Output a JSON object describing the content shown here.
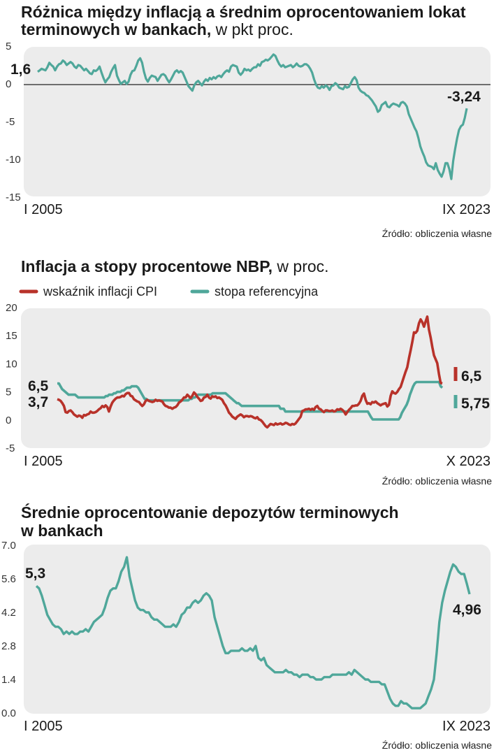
{
  "colors": {
    "teal": "#4fa79a",
    "red": "#b8322a",
    "panel": "#ececec",
    "text": "#1a1a1a"
  },
  "chart_data": [
    {
      "type": "line",
      "title": "Różnica między inflacją a średnim oprocentowaniem lokat",
      "title_line2": "terminowych w bankach,",
      "title_unit": " w pkt proc.",
      "x_start_label": "I 2005",
      "x_end_label": "IX 2023",
      "yticks": [
        "5",
        "0",
        "-5",
        "-10",
        "-15"
      ],
      "ytick_values": [
        5,
        0,
        -5,
        -10,
        -15
      ],
      "ylim": [
        -15,
        5
      ],
      "zero_line": true,
      "source": "Źródło: obliczenia własne",
      "start_annotation": "1,6",
      "end_annotation": "-3,24",
      "series": [
        {
          "name": "różnica",
          "color": "#4fa79a",
          "values": [
            1.6,
            1.8,
            2.0,
            1.9,
            1.8,
            2.2,
            2.8,
            2.5,
            2.3,
            1.8,
            2.3,
            2.6,
            2.7,
            3.1,
            2.9,
            2.5,
            2.7,
            2.9,
            2.7,
            2.3,
            2.1,
            2.5,
            2.4,
            2.1,
            1.8,
            2.0,
            1.7,
            1.4,
            1.3,
            1.8,
            1.7,
            1.9,
            2.3,
            1.5,
            0.8,
            0.2,
            0.6,
            0.9,
            1.6,
            2.1,
            2.5,
            1.1,
            0.5,
            0.0,
            0.2,
            0.4,
            0.0,
            0.3,
            1.2,
            1.7,
            1.8,
            2.4,
            3.1,
            3.4,
            2.8,
            1.6,
            0.7,
            0.3,
            0.8,
            1.1,
            1.0,
            0.9,
            0.4,
            0.8,
            1.2,
            1.3,
            1.1,
            0.6,
            0.2,
            0.6,
            1.1,
            1.6,
            1.8,
            1.5,
            1.7,
            1.5,
            0.9,
            0.3,
            -0.3,
            -0.6,
            -0.9,
            -0.2,
            0.2,
            0.4,
            0.1,
            -0.2,
            0.3,
            0.6,
            0.4,
            0.8,
            0.6,
            0.9,
            0.7,
            1.0,
            1.1,
            0.9,
            1.3,
            1.6,
            1.8,
            1.6,
            2.3,
            2.5,
            2.4,
            2.3,
            1.5,
            1.2,
            1.5,
            2.0,
            1.8,
            1.9,
            1.7,
            2.0,
            2.2,
            2.2,
            2.6,
            2.4,
            2.9,
            3.0,
            3.2,
            3.1,
            3.3,
            3.6,
            3.9,
            3.7,
            3.1,
            2.6,
            2.3,
            2.5,
            2.2,
            2.3,
            2.4,
            2.5,
            2.2,
            2.4,
            2.7,
            2.4,
            2.3,
            2.4,
            2.6,
            2.6,
            2.4,
            2.0,
            1.5,
            0.6,
            -0.1,
            -0.5,
            -0.6,
            -0.3,
            -0.5,
            -0.2,
            -0.4,
            -0.8,
            -0.3,
            -0.2,
            0.1,
            -0.1,
            -0.5,
            -0.6,
            -0.7,
            -0.3,
            -0.5,
            -0.4,
            0.1,
            0.6,
            0.9,
            0.5,
            -0.5,
            -0.9,
            -1.1,
            -1.2,
            -1.5,
            -1.6,
            -1.9,
            -2.2,
            -2.6,
            -3.0,
            -3.7,
            -3.5,
            -2.8,
            -2.6,
            -2.4,
            -3.0,
            -3.1,
            -2.8,
            -2.6,
            -2.7,
            -2.8,
            -3.0,
            -2.5,
            -2.4,
            -2.6,
            -3.0,
            -4.0,
            -4.6,
            -5.2,
            -5.8,
            -6.3,
            -7.2,
            -8.3,
            -9.0,
            -9.6,
            -10.4,
            -10.8,
            -10.9,
            -11.0,
            -11.3,
            -10.5,
            -11.4,
            -11.9,
            -12.3,
            -11.6,
            -10.5,
            -10.5,
            -11.3,
            -12.6,
            -10.2,
            -8.6,
            -7.2,
            -6.1,
            -5.6,
            -5.4,
            -4.5,
            -3.24
          ]
        }
      ]
    },
    {
      "type": "line",
      "title": "Inflacja a stopy procentowe NBP,",
      "title_unit": " w proc.",
      "x_start_label": "I 2005",
      "x_end_label": "X 2023",
      "yticks": [
        "20",
        "15",
        "10",
        "5",
        "0",
        "-5"
      ],
      "ytick_values": [
        20,
        15,
        10,
        5,
        0,
        -5
      ],
      "ylim": [
        -5,
        20
      ],
      "source": "Źródło: obliczenia własne",
      "start_annotations": [
        "6,5",
        "3,7"
      ],
      "end_annotations": [
        "6,5",
        "5,75"
      ],
      "series": [
        {
          "name": "wskaźnik inflacji CPI",
          "color": "#b8322a",
          "values": [
            3.7,
            3.6,
            3.4,
            3.0,
            2.5,
            1.4,
            1.3,
            1.6,
            1.7,
            1.4,
            1.0,
            0.8,
            0.6,
            0.8,
            0.7,
            0.4,
            0.9,
            0.8,
            1.0,
            1.1,
            1.5,
            1.3,
            1.3,
            1.4,
            1.6,
            1.9,
            2.1,
            2.5,
            2.3,
            2.6,
            2.3,
            1.5,
            2.4,
            3.1,
            3.5,
            3.8,
            4.0,
            4.0,
            4.1,
            4.3,
            4.2,
            4.6,
            4.8,
            4.8,
            4.3,
            4.2,
            3.7,
            3.5,
            3.3,
            3.2,
            2.8,
            2.5,
            2.8,
            3.4,
            3.6,
            3.4,
            3.3,
            3.2,
            3.3,
            3.6,
            3.4,
            3.5,
            3.4,
            3.3,
            2.8,
            2.5,
            2.4,
            2.2,
            2.2,
            2.0,
            2.2,
            2.3,
            2.6,
            3.1,
            3.3,
            3.6,
            4.0,
            4.0,
            4.5,
            4.2,
            3.9,
            4.3,
            4.9,
            4.6,
            4.1,
            3.8,
            3.4,
            3.5,
            4.0,
            4.1,
            4.5,
            4.0,
            3.8,
            4.2,
            4.1,
            4.2,
            3.9,
            4.0,
            3.8,
            3.6,
            3.0,
            2.6,
            2.0,
            1.3,
            1.0,
            0.6,
            0.4,
            0.2,
            0.6,
            0.8,
            1.0,
            0.8,
            0.5,
            0.7,
            0.7,
            0.6,
            0.7,
            0.6,
            0.4,
            0.3,
            0.5,
            0.1,
            0.0,
            -0.3,
            -0.7,
            -1.1,
            -1.3,
            -1.0,
            -0.7,
            -0.8,
            -0.9,
            -0.6,
            -0.8,
            -0.7,
            -0.6,
            -0.8,
            -0.7,
            -0.5,
            -0.6,
            -0.8,
            -0.9,
            -0.7,
            -0.8,
            -0.6,
            -0.2,
            0.2,
            0.6,
            1.6,
            1.7,
            1.9,
            1.9,
            2.0,
            1.8,
            2.0,
            1.8,
            2.3,
            2.5,
            2.0,
            1.9,
            1.6,
            1.4,
            1.7,
            1.7,
            1.6,
            1.6,
            1.7,
            1.5,
            1.6,
            1.9,
            1.8,
            2.0,
            1.8,
            1.5,
            1.0,
            1.4,
            1.8,
            2.1,
            2.5,
            2.5,
            2.6,
            2.6,
            2.9,
            3.4,
            4.3,
            4.7,
            3.6,
            2.9,
            3.0,
            2.8,
            3.2,
            3.1,
            3.3,
            3.0,
            2.8,
            2.6,
            2.8,
            2.9,
            3.0,
            2.4,
            2.7,
            4.3,
            5.1,
            4.8,
            4.7,
            5.0,
            5.5,
            5.9,
            6.8,
            7.7,
            8.6,
            9.4,
            11.0,
            12.4,
            13.9,
            15.6,
            15.5,
            15.9,
            17.2,
            17.9,
            17.4,
            16.6,
            17.5,
            18.4,
            16.1,
            14.7,
            13.0,
            11.5,
            10.8,
            10.1,
            8.2,
            6.6,
            6.5
          ]
        },
        {
          "name": "stopa referencyjna",
          "color": "#4fa79a",
          "values": [
            6.5,
            6.5,
            6.0,
            5.5,
            5.25,
            5.0,
            4.75,
            4.5,
            4.5,
            4.5,
            4.5,
            4.5,
            4.25,
            4.0,
            4.0,
            4.0,
            4.0,
            4.0,
            4.0,
            4.0,
            4.0,
            4.0,
            4.0,
            4.0,
            4.0,
            4.0,
            4.0,
            4.0,
            4.0,
            4.0,
            4.25,
            4.25,
            4.5,
            4.5,
            4.5,
            4.75,
            4.75,
            5.0,
            5.0,
            5.0,
            5.25,
            5.25,
            5.5,
            5.75,
            5.75,
            5.75,
            6.0,
            6.0,
            6.0,
            6.0,
            5.75,
            5.25,
            4.75,
            4.25,
            3.75,
            3.75,
            3.5,
            3.5,
            3.5,
            3.5,
            3.5,
            3.5,
            3.5,
            3.5,
            3.5,
            3.5,
            3.5,
            3.5,
            3.5,
            3.5,
            3.5,
            3.5,
            3.5,
            3.5,
            3.5,
            3.5,
            3.5,
            3.5,
            3.5,
            3.5,
            3.5,
            3.5,
            3.75,
            3.75,
            4.0,
            4.0,
            4.25,
            4.5,
            4.5,
            4.5,
            4.5,
            4.5,
            4.5,
            4.5,
            4.5,
            4.5,
            4.75,
            4.75,
            4.75,
            4.75,
            4.75,
            4.75,
            4.75,
            4.75,
            4.75,
            4.5,
            4.25,
            4.0,
            3.75,
            3.5,
            3.25,
            3.0,
            3.0,
            2.75,
            2.5,
            2.5,
            2.5,
            2.5,
            2.5,
            2.5,
            2.5,
            2.5,
            2.5,
            2.5,
            2.5,
            2.5,
            2.5,
            2.5,
            2.5,
            2.5,
            2.5,
            2.5,
            2.5,
            2.5,
            2.5,
            2.5,
            2.5,
            2.5,
            2.0,
            2.0,
            2.0,
            1.5,
            1.5,
            1.5,
            1.5,
            1.5,
            1.5,
            1.5,
            1.5,
            1.5,
            1.5,
            1.5,
            1.5,
            1.5,
            1.5,
            1.5,
            1.5,
            1.5,
            1.5,
            1.5,
            1.5,
            1.5,
            1.5,
            1.5,
            1.5,
            1.5,
            1.5,
            1.5,
            1.5,
            1.5,
            1.5,
            1.5,
            1.5,
            1.5,
            1.5,
            1.5,
            1.5,
            1.5,
            1.5,
            1.5,
            1.5,
            1.5,
            1.5,
            1.5,
            1.5,
            1.5,
            1.5,
            1.5,
            1.5,
            1.5,
            1.5,
            1.5,
            1.5,
            1.0,
            0.5,
            0.1,
            0.1,
            0.1,
            0.1,
            0.1,
            0.1,
            0.1,
            0.1,
            0.1,
            0.1,
            0.1,
            0.1,
            0.1,
            0.1,
            0.1,
            0.1,
            0.1,
            0.5,
            1.25,
            1.75,
            2.25,
            2.75,
            3.5,
            4.5,
            5.25,
            6.0,
            6.5,
            6.75,
            6.75,
            6.75,
            6.75,
            6.75,
            6.75,
            6.75,
            6.75,
            6.75,
            6.75,
            6.75,
            6.75,
            6.75,
            6.75,
            6.75,
            6.0,
            5.75
          ]
        }
      ]
    },
    {
      "type": "line",
      "title": "Średnie oprocentowanie depozytów  terminowych",
      "title_line2": "w bankach",
      "x_start_label": "I 2005",
      "x_end_label": "IX 2023",
      "yticks": [
        "7.0",
        "5.6",
        "4.2",
        "2.8",
        "1.4",
        "0.0"
      ],
      "ytick_values": [
        7.0,
        5.6,
        4.2,
        2.8,
        1.4,
        0.0
      ],
      "ylim": [
        0,
        7
      ],
      "source": "Źródło: obliczenia własne",
      "start_annotation": "5,3",
      "end_annotation": "4,96",
      "series": [
        {
          "name": "oprocentowanie",
          "color": "#4fa79a",
          "values": [
            5.3,
            5.2,
            4.9,
            4.5,
            4.1,
            3.9,
            3.7,
            3.6,
            3.6,
            3.5,
            3.3,
            3.4,
            3.3,
            3.4,
            3.3,
            3.3,
            3.4,
            3.4,
            3.5,
            3.4,
            3.6,
            3.8,
            3.9,
            4.0,
            4.1,
            4.4,
            4.8,
            5.1,
            5.2,
            5.2,
            5.5,
            5.9,
            6.1,
            6.5,
            5.7,
            5.2,
            4.7,
            4.4,
            4.3,
            4.3,
            4.2,
            4.2,
            4.0,
            3.9,
            3.9,
            3.8,
            3.7,
            3.6,
            3.6,
            3.6,
            3.7,
            3.6,
            3.8,
            4.1,
            4.2,
            4.4,
            4.4,
            4.6,
            4.7,
            4.6,
            4.7,
            4.9,
            5.0,
            4.9,
            4.7,
            4.0,
            3.6,
            3.2,
            2.8,
            2.5,
            2.5,
            2.6,
            2.6,
            2.6,
            2.6,
            2.7,
            2.6,
            2.6,
            2.7,
            2.6,
            2.8,
            2.3,
            2.2,
            2.3,
            2.0,
            1.9,
            1.8,
            1.7,
            1.7,
            1.7,
            1.7,
            1.8,
            1.7,
            1.7,
            1.6,
            1.6,
            1.5,
            1.6,
            1.6,
            1.6,
            1.5,
            1.5,
            1.4,
            1.4,
            1.4,
            1.5,
            1.5,
            1.5,
            1.6,
            1.6,
            1.6,
            1.6,
            1.6,
            1.6,
            1.7,
            1.6,
            1.8,
            1.7,
            1.6,
            1.5,
            1.4,
            1.4,
            1.3,
            1.3,
            1.3,
            1.3,
            1.2,
            1.2,
            0.9,
            0.6,
            0.4,
            0.3,
            0.3,
            0.5,
            0.4,
            0.4,
            0.3,
            0.2,
            0.2,
            0.2,
            0.2,
            0.3,
            0.4,
            0.7,
            1.0,
            1.4,
            2.5,
            3.8,
            4.6,
            5.1,
            5.5,
            5.9,
            6.2,
            6.1,
            5.9,
            5.8,
            5.8,
            5.4,
            4.96
          ]
        }
      ]
    }
  ],
  "legend": {
    "cpi": "wskaźnik inflacji CPI",
    "ref": "stopa referencyjna"
  }
}
